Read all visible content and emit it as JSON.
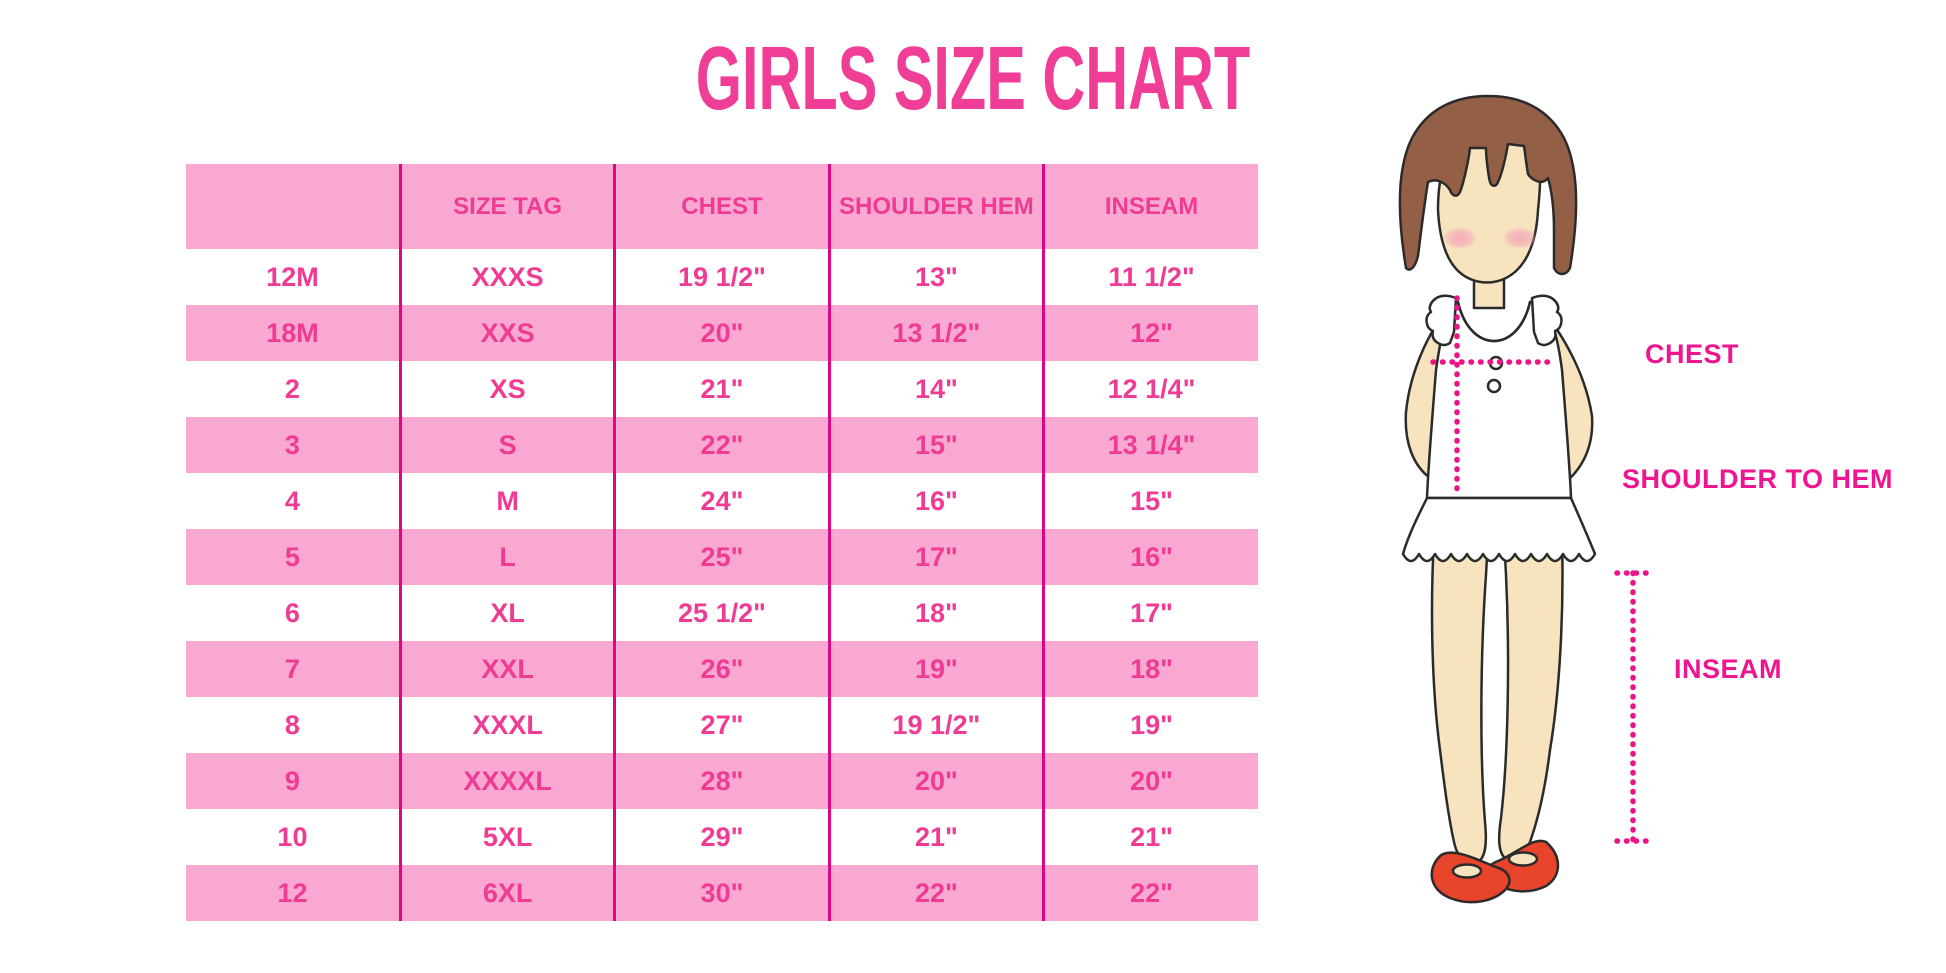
{
  "title": "GIRLS SIZE CHART",
  "table": {
    "columns": [
      "",
      "SIZE TAG",
      "CHEST",
      "SHOULDER HEM",
      "INSEAM"
    ],
    "rows": [
      [
        "12M",
        "XXXS",
        "19 1/2\"",
        "13\"",
        "11 1/2\""
      ],
      [
        "18M",
        "XXS",
        "20\"",
        "13 1/2\"",
        "12\""
      ],
      [
        "2",
        "XS",
        "21\"",
        "14\"",
        "12 1/4\""
      ],
      [
        "3",
        "S",
        "22\"",
        "15\"",
        "13 1/4\""
      ],
      [
        "4",
        "M",
        "24\"",
        "16\"",
        "15\""
      ],
      [
        "5",
        "L",
        "25\"",
        "17\"",
        "16\""
      ],
      [
        "6",
        "XL",
        "25 1/2\"",
        "18\"",
        "17\""
      ],
      [
        "7",
        "XXL",
        "26\"",
        "19\"",
        "18\""
      ],
      [
        "8",
        "XXXL",
        "27\"",
        "19 1/2\"",
        "19\""
      ],
      [
        "9",
        "XXXXL",
        "28\"",
        "20\"",
        "20\""
      ],
      [
        "10",
        "5XL",
        "29\"",
        "21\"",
        "21\""
      ],
      [
        "12",
        "6XL",
        "30\"",
        "22\"",
        "22\""
      ]
    ]
  },
  "diagram": {
    "labels": {
      "chest": "CHEST",
      "shoulder_to_hem": "SHOULDER TO HEM",
      "inseam": "INSEAM"
    }
  },
  "colors": {
    "title_pink": "#F03D96",
    "table_text_pink": "#EF3B94",
    "row_pink": "#F9A8D2",
    "divider_magenta": "#DE0684",
    "label_magenta": "#EF1590",
    "dotted_magenta": "#EC1388",
    "hair_brown": "#935F47",
    "skin": "#F7E3BE",
    "blush": "#F3A8B8",
    "outline": "#2B2B2B",
    "shoe_red": "#E8432B",
    "garment_white": "#FFFFFF"
  }
}
